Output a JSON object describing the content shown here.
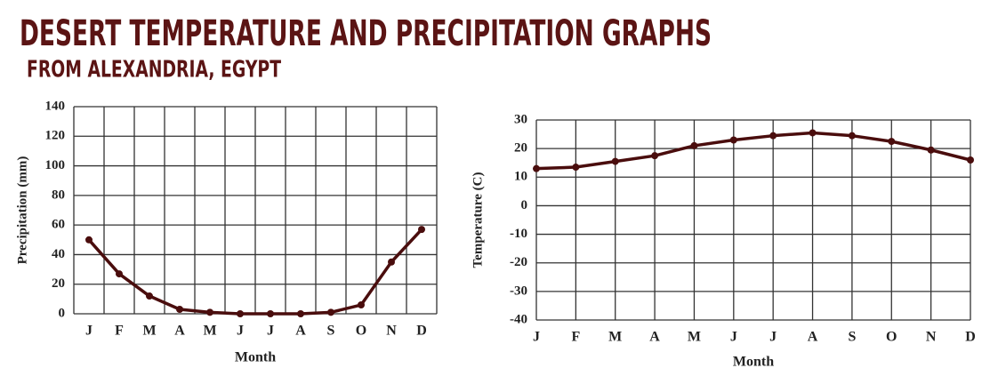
{
  "header": {
    "title": "DESERT TEMPERATURE AND PRECIPITATION GRAPHS",
    "subtitle": "FROM ALEXANDRIA, EGYPT"
  },
  "chart_data": [
    {
      "type": "line",
      "x_label": "Month",
      "y_label": "Precipitation (mm)",
      "categories": [
        "J",
        "F",
        "M",
        "A",
        "M",
        "J",
        "J",
        "A",
        "S",
        "O",
        "N",
        "D"
      ],
      "values": [
        50,
        27,
        12,
        3,
        1,
        0,
        0,
        0,
        1,
        6,
        35,
        57
      ],
      "color": "#4a0d0d",
      "ylim": [
        0,
        140
      ],
      "yticks": [
        0,
        20,
        40,
        60,
        80,
        100,
        120,
        140
      ],
      "grid": true
    },
    {
      "type": "line",
      "x_label": "Month",
      "y_label": "Temperature (C)",
      "categories": [
        "J",
        "F",
        "M",
        "A",
        "M",
        "J",
        "J",
        "A",
        "S",
        "O",
        "N",
        "D"
      ],
      "values": [
        13,
        13.5,
        15.5,
        17.5,
        21,
        23,
        24.5,
        25.5,
        24.5,
        22.5,
        19.5,
        16
      ],
      "color": "#4a0d0d",
      "ylim": [
        -40,
        30
      ],
      "yticks": [
        -40,
        -30,
        -20,
        -10,
        0,
        10,
        20,
        30
      ],
      "grid": true
    }
  ]
}
